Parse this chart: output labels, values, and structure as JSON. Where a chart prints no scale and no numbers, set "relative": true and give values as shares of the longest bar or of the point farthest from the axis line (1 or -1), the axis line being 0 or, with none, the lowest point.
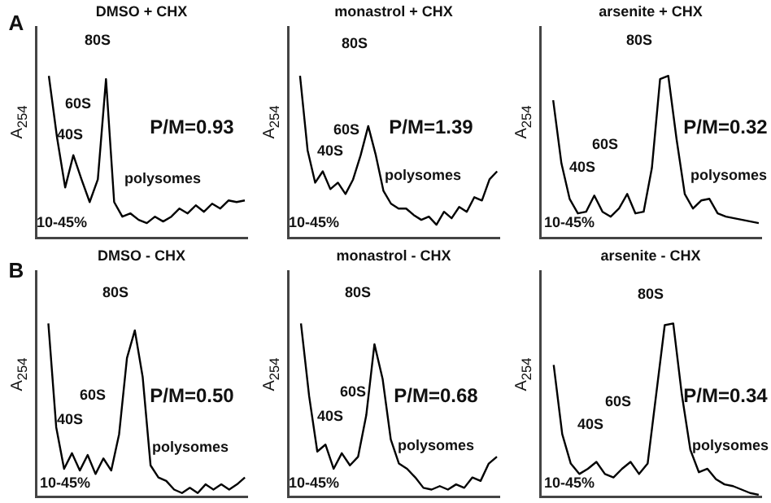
{
  "chart_data": [
    {
      "type": "line",
      "title": "DMSO + CHX",
      "ylabel": "A$_{254}$",
      "relative": true,
      "legend": false,
      "categories": [
        null,
        null,
        null,
        null,
        null,
        null,
        null,
        null,
        null,
        null,
        null,
        null,
        null,
        null,
        null,
        null,
        null,
        null,
        null,
        null,
        null,
        null,
        null,
        null,
        null
      ],
      "series": [
        {
          "color": "#000000",
          "values": [
            1,
            0.62,
            0.31,
            0.51,
            0.36,
            0.22,
            0.36,
            0.98,
            0.22,
            0.13,
            0.15,
            0.11,
            0.09,
            0.13,
            0.1,
            0.13,
            0.18,
            0.15,
            0.2,
            0.16,
            0.21,
            0.18,
            0.23,
            0.22,
            0.23
          ]
        }
      ],
      "annotations": [
        "80S",
        "60S",
        "40S",
        "P/M=0.93",
        "polysomes",
        "10-45%",
        "A"
      ]
    },
    {
      "type": "line",
      "title": "monastrol + CHX",
      "ylabel": "A$_{254}$",
      "relative": true,
      "legend": false,
      "categories": [
        null,
        null,
        null,
        null,
        null,
        null,
        null,
        null,
        null,
        null,
        null,
        null,
        null,
        null,
        null,
        null,
        null,
        null,
        null,
        null,
        null,
        null,
        null,
        null,
        null,
        null,
        null
      ],
      "series": [
        {
          "color": "#000000",
          "values": [
            1,
            0.54,
            0.34,
            0.41,
            0.3,
            0.34,
            0.27,
            0.36,
            0.51,
            0.69,
            0.51,
            0.29,
            0.21,
            0.18,
            0.18,
            0.14,
            0.11,
            0.13,
            0.08,
            0.16,
            0.12,
            0.19,
            0.16,
            0.25,
            0.23,
            0.36,
            0.41
          ]
        }
      ],
      "annotations": [
        "80S",
        "60S",
        "40S",
        "P/M=1.39",
        "polysomes",
        "10-45%"
      ]
    },
    {
      "type": "line",
      "title": "arsenite + CHX",
      "ylabel": "A$_{254}$",
      "relative": true,
      "legend": false,
      "categories": [
        null,
        null,
        null,
        null,
        null,
        null,
        null,
        null,
        null,
        null,
        null,
        null,
        null,
        null,
        null,
        null,
        null,
        null,
        null,
        null,
        null,
        null,
        null,
        null,
        null,
        null
      ],
      "series": [
        {
          "color": "#000000",
          "values": [
            0.85,
            0.46,
            0.24,
            0.15,
            0.16,
            0.26,
            0.16,
            0.13,
            0.18,
            0.27,
            0.15,
            0.16,
            0.43,
            0.98,
            1,
            0.61,
            0.27,
            0.18,
            0.23,
            0.24,
            0.15,
            0.13,
            0.12,
            0.11,
            0.1,
            0.09
          ]
        }
      ],
      "annotations": [
        "80S",
        "60S",
        "40S",
        "P/M=0.32",
        "polysomes",
        "10-45%"
      ]
    },
    {
      "type": "line",
      "title": "DMSO - CHX",
      "ylabel": "A$_{254}$",
      "relative": true,
      "legend": false,
      "categories": [
        null,
        null,
        null,
        null,
        null,
        null,
        null,
        null,
        null,
        null,
        null,
        null,
        null,
        null,
        null,
        null,
        null,
        null,
        null,
        null,
        null,
        null,
        null,
        null,
        null,
        null
      ],
      "series": [
        {
          "color": "#000000",
          "values": [
            1,
            0.4,
            0.16,
            0.25,
            0.15,
            0.24,
            0.13,
            0.22,
            0.15,
            0.36,
            0.8,
            0.96,
            0.69,
            0.18,
            0.11,
            0.09,
            0.04,
            0.02,
            0.05,
            0.02,
            0.07,
            0.04,
            0.07,
            0.04,
            0.07,
            0.11
          ]
        }
      ],
      "annotations": [
        "80S",
        "60S",
        "40S",
        "P/M=0.50",
        "polysomes",
        "10-45%",
        "B"
      ]
    },
    {
      "type": "line",
      "title": "monastrol - CHX",
      "ylabel": "A$_{254}$",
      "relative": true,
      "legend": false,
      "categories": [
        null,
        null,
        null,
        null,
        null,
        null,
        null,
        null,
        null,
        null,
        null,
        null,
        null,
        null,
        null,
        null,
        null,
        null,
        null,
        null,
        null,
        null,
        null,
        null,
        null
      ],
      "series": [
        {
          "color": "#000000",
          "values": [
            1,
            0.58,
            0.26,
            0.3,
            0.16,
            0.25,
            0.18,
            0.23,
            0.47,
            0.88,
            0.68,
            0.33,
            0.19,
            0.16,
            0.11,
            0.05,
            0.04,
            0.06,
            0.04,
            0.07,
            0.05,
            0.11,
            0.09,
            0.19,
            0.23
          ]
        }
      ],
      "annotations": [
        "80S",
        "60S",
        "40S",
        "P/M=0.68",
        "polysomes",
        "10-45%"
      ]
    },
    {
      "type": "line",
      "title": "arsenite - CHX",
      "ylabel": "A$_{254}$",
      "relative": true,
      "legend": false,
      "categories": [
        null,
        null,
        null,
        null,
        null,
        null,
        null,
        null,
        null,
        null,
        null,
        null,
        null,
        null,
        null,
        null,
        null,
        null,
        null,
        null,
        null,
        null,
        null,
        null,
        null
      ],
      "series": [
        {
          "color": "#000000",
          "values": [
            0.76,
            0.36,
            0.19,
            0.13,
            0.16,
            0.2,
            0.13,
            0.11,
            0.16,
            0.2,
            0.13,
            0.19,
            0.59,
            0.99,
            1,
            0.59,
            0.27,
            0.14,
            0.16,
            0.1,
            0.07,
            0.06,
            0.04,
            0.02,
            0.01
          ]
        }
      ],
      "annotations": [
        "80S",
        "60S",
        "40S",
        "P/M=0.34",
        "polysomes",
        "10-45%"
      ]
    }
  ]
}
